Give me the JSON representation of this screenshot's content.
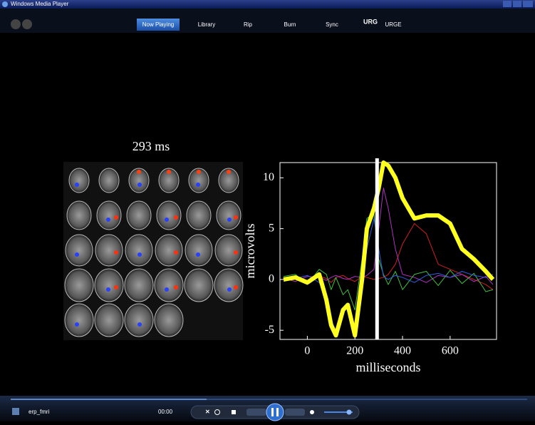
{
  "window": {
    "title": "Windows Media Player"
  },
  "tabs": [
    "Now Playing",
    "Library",
    "Rip",
    "Burn",
    "Sync",
    "URGE"
  ],
  "urge_logo": "URG",
  "video": {
    "time_label": "293 ms",
    "chart": {
      "type": "line",
      "xlabel": "milliseconds",
      "ylabel": "microvolts",
      "x": [
        -100,
        -50,
        0,
        50,
        80,
        100,
        120,
        150,
        170,
        200,
        230,
        250,
        280,
        300,
        320,
        340,
        370,
        400,
        450,
        500,
        550,
        600,
        650,
        700,
        750,
        780
      ],
      "series": [
        {
          "color": "#d02020",
          "width": 1,
          "values": [
            0,
            0.2,
            -0.2,
            0.3,
            0.1,
            -0.3,
            0.2,
            0.4,
            0.1,
            -0.2,
            0.3,
            0.2,
            0,
            0.1,
            0.2,
            0.5,
            1.5,
            3.5,
            5.5,
            4.5,
            1.5,
            1,
            0.5,
            0,
            -0.5,
            -1
          ]
        },
        {
          "color": "#b030c0",
          "width": 1,
          "values": [
            0.1,
            -0.2,
            0.3,
            0.2,
            -0.1,
            0.2,
            0.4,
            0.1,
            0,
            0.3,
            0.2,
            0.4,
            1,
            5,
            9,
            7,
            3,
            0.5,
            0.2,
            -0.3,
            0.4,
            0.2,
            0.5,
            -0.2,
            0.3,
            -0.5
          ]
        },
        {
          "color": "#40c040",
          "width": 1,
          "values": [
            0.3,
            0.5,
            -0.5,
            1,
            0.5,
            -1,
            0.2,
            -1.5,
            -1,
            -3,
            2,
            6,
            6.5,
            2,
            0.5,
            -0.5,
            0.8,
            -1,
            0.5,
            0.8,
            -0.6,
            0.9,
            -0.4,
            0.6,
            -1.2,
            -1
          ]
        },
        {
          "color": "#3060e0",
          "width": 1,
          "values": [
            -0.2,
            0.1,
            0.4,
            -0.3,
            -2,
            -4,
            -5,
            -3,
            -2.5,
            -5,
            -1,
            3,
            6,
            3,
            0.3,
            0,
            0.4,
            0.2,
            -0.3,
            0.4,
            0.6,
            0.2,
            0.8,
            0.4,
            0.2,
            0.5
          ]
        },
        {
          "color": "#ffff20",
          "width": 6,
          "values": [
            0,
            0.2,
            -0.3,
            0.5,
            -2,
            -4.5,
            -5.5,
            -3,
            -2.5,
            -5.5,
            0,
            5,
            7,
            9,
            11.5,
            11.2,
            10,
            8,
            6,
            6.3,
            6.3,
            5.5,
            3,
            2,
            0.8,
            0
          ]
        }
      ],
      "cursor": 293,
      "xlim": [
        -115,
        795
      ],
      "ylim": [
        -5.9,
        11.5
      ],
      "xticks": [
        0,
        200,
        400,
        600
      ],
      "yticks": [
        -5,
        0,
        5,
        10
      ]
    }
  },
  "controls": {
    "media_name": "erp_fmri",
    "time": "00:00"
  }
}
